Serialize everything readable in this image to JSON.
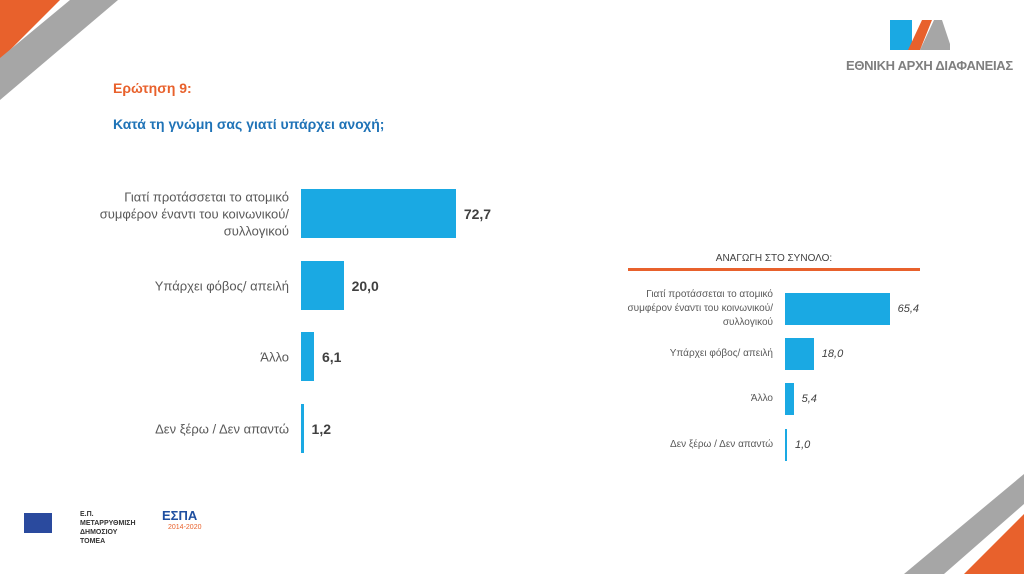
{
  "question_label": "Ερώτηση 9:",
  "question_text": "Κατά τη γνώμη σας γιατί υπάρχει ανοχή;",
  "logo": {
    "text": "ΕΘΝΙΚΗ ΑΡΧΗ ΔΙΑΦΑΝΕΙΑΣ",
    "mark": "ΕΑΔ"
  },
  "colors": {
    "bar": "#1aa9e3",
    "accent": "#e8612c",
    "title": "#1f73b7",
    "gray": "#a6a6a6"
  },
  "chart_data": [
    {
      "type": "bar",
      "orientation": "horizontal",
      "categories": [
        "Γιατί προτάσσεται το ατομικό συμφέρον έναντι του κοινωνικού/ συλλογικού",
        "Υπάρχει φόβος/ απειλή",
        "Άλλο",
        "Δεν ξέρω / Δεν απαντώ"
      ],
      "values": [
        72.7,
        20.0,
        6.1,
        1.2
      ],
      "value_labels": [
        "72,7",
        "20,0",
        "6,1",
        "1,2"
      ]
    },
    {
      "type": "bar",
      "orientation": "horizontal",
      "title": "ΑΝΑΓΩΓΗ ΣΤΟ ΣΥΝΟΛΟ:",
      "categories": [
        "Γιατί προτάσσεται το ατομικό συμφέρον έναντι του κοινωνικού/ συλλογικού",
        "Υπάρχει φόβος/ απειλή",
        "Άλλο",
        "Δεν ξέρω / Δεν απαντώ"
      ],
      "values": [
        65.4,
        18.0,
        5.4,
        1.0
      ],
      "value_labels": [
        "65,4",
        "18,0",
        "5,4",
        "1,0"
      ]
    }
  ],
  "footer": {
    "program": "Ε.Π. ΜΕΤΑΡΡΥΘΜΙΣΗ ΔΗΜΟΣΙΟΥ ΤΟΜΕΑ",
    "espa": "ΕΣΠΑ",
    "espa_years": "2014-2020"
  }
}
